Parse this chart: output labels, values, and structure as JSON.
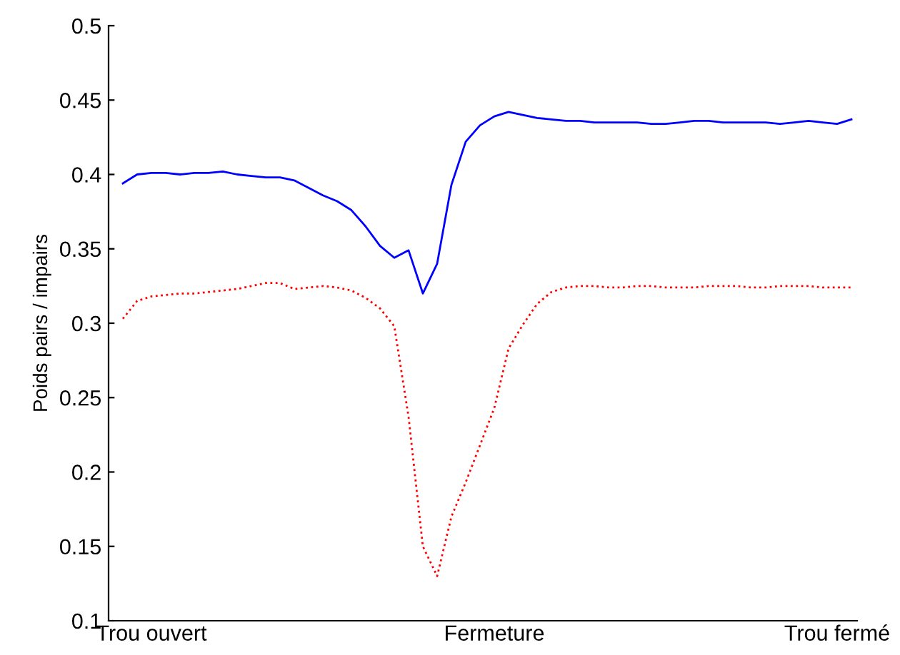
{
  "chart_data": {
    "type": "line",
    "ylabel": "Poids pairs / impairs",
    "categories": [
      null,
      null,
      "Trou ouvert",
      null,
      null,
      null,
      null,
      null,
      null,
      null,
      null,
      null,
      null,
      null,
      null,
      null,
      null,
      null,
      null,
      null,
      null,
      null,
      null,
      null,
      null,
      null,
      "Fermeture",
      null,
      null,
      null,
      null,
      null,
      null,
      null,
      null,
      null,
      null,
      null,
      null,
      null,
      null,
      null,
      null,
      null,
      null,
      null,
      null,
      null,
      null,
      null,
      "Trou fermé",
      null
    ],
    "ylim": [
      0.1,
      0.5
    ],
    "yticks": [
      0.1,
      0.15,
      0.2,
      0.25,
      0.3,
      0.35,
      0.4,
      0.45,
      0.5
    ],
    "grid": false,
    "legend": false,
    "series": [
      {
        "line_style": "solid",
        "color": "#0000ff",
        "values": [
          0.394,
          0.4,
          0.401,
          0.401,
          0.4,
          0.401,
          0.401,
          0.402,
          0.4,
          0.399,
          0.398,
          0.398,
          0.396,
          0.391,
          0.386,
          0.382,
          0.376,
          0.365,
          0.352,
          0.344,
          0.349,
          0.32,
          0.34,
          0.393,
          0.422,
          0.433,
          0.439,
          0.442,
          0.44,
          0.438,
          0.437,
          0.436,
          0.436,
          0.435,
          0.435,
          0.435,
          0.435,
          0.434,
          0.434,
          0.435,
          0.436,
          0.436,
          0.435,
          0.435,
          0.435,
          0.435,
          0.434,
          0.435,
          0.436,
          0.435,
          0.434,
          0.437
        ]
      },
      {
        "line_style": "dotted",
        "color": "#ff0000",
        "values": [
          0.303,
          0.315,
          0.318,
          0.319,
          0.32,
          0.32,
          0.321,
          0.322,
          0.323,
          0.325,
          0.327,
          0.327,
          0.323,
          0.324,
          0.325,
          0.324,
          0.322,
          0.317,
          0.31,
          0.298,
          0.237,
          0.15,
          0.13,
          0.17,
          0.193,
          0.218,
          0.243,
          0.283,
          0.299,
          0.313,
          0.321,
          0.324,
          0.325,
          0.325,
          0.324,
          0.324,
          0.325,
          0.325,
          0.324,
          0.324,
          0.324,
          0.325,
          0.325,
          0.325,
          0.324,
          0.324,
          0.325,
          0.325,
          0.325,
          0.324,
          0.324,
          0.324
        ]
      }
    ]
  }
}
